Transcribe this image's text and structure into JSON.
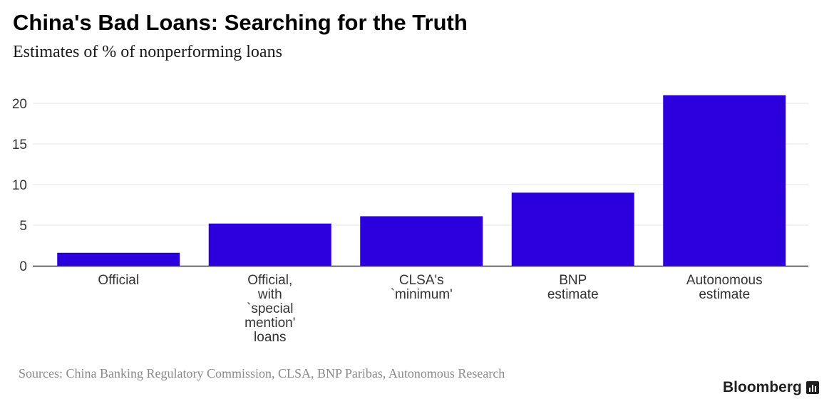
{
  "header": {
    "title": "China's Bad Loans: Searching for the Truth",
    "subtitle": "Estimates of % of nonperforming loans"
  },
  "footer": {
    "source": "Sources: China Banking Regulatory Commission, CLSA, BNP Paribas, Autonomous Research",
    "brand": "Bloomberg",
    "brand_icon": "bloomberg-chart-icon"
  },
  "chart_data": {
    "type": "bar",
    "categories": [
      [
        "Official"
      ],
      [
        "Official,",
        "with",
        "`special",
        "mention'",
        "loans"
      ],
      [
        "CLSA's",
        "`minimum'"
      ],
      [
        "BNP",
        "estimate"
      ],
      [
        "Autonomous",
        "estimate"
      ]
    ],
    "values": [
      1.6,
      5.2,
      6.1,
      9.0,
      21.0
    ],
    "ylim": [
      0,
      21
    ],
    "yticks": [
      0,
      5,
      10,
      15,
      20
    ],
    "grid": true,
    "bar_color": "#2b00dd",
    "grid_color": "#e6e6e6",
    "axis_color": "#333333"
  }
}
